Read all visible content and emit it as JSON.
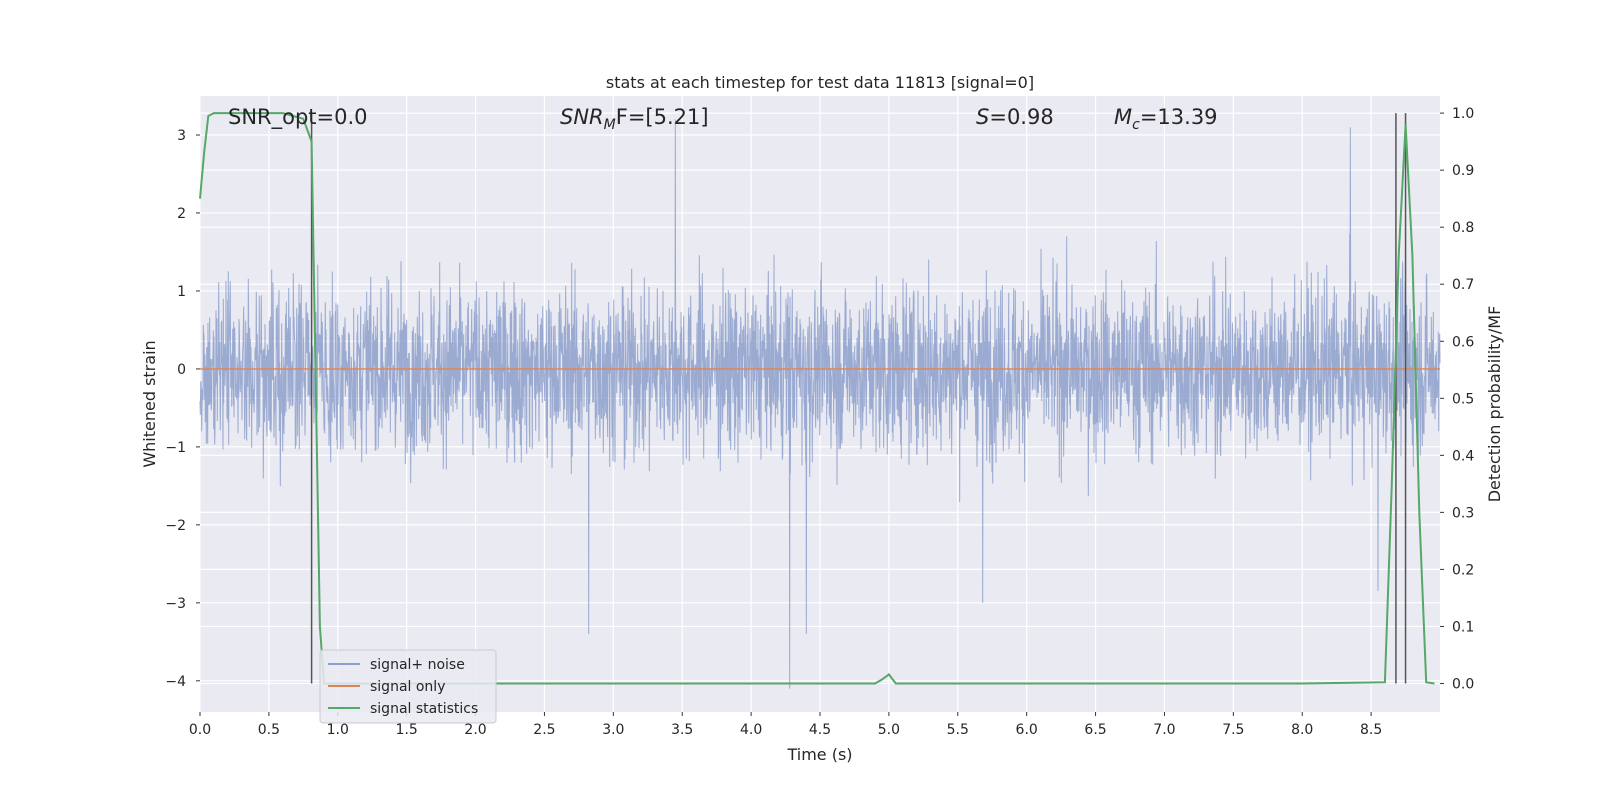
{
  "chart_data": {
    "type": "line",
    "title": "stats at each timestep for test data 11813 [signal=0]",
    "xlabel": "Time (s)",
    "ylabel": "Whitened strain",
    "y2label": "Detection probability/MF",
    "xlim": [
      0.0,
      9.0
    ],
    "ylim": [
      -4.4,
      3.5
    ],
    "y2lim": [
      -0.05,
      1.03
    ],
    "x_ticks": [
      "0.0",
      "0.5",
      "1.0",
      "1.5",
      "2.0",
      "2.5",
      "3.0",
      "3.5",
      "4.0",
      "4.5",
      "5.0",
      "5.5",
      "6.0",
      "6.5",
      "7.0",
      "7.5",
      "8.0",
      "8.5"
    ],
    "x_tick_values": [
      0.0,
      0.5,
      1.0,
      1.5,
      2.0,
      2.5,
      3.0,
      3.5,
      4.0,
      4.5,
      5.0,
      5.5,
      6.0,
      6.5,
      7.0,
      7.5,
      8.0,
      8.5
    ],
    "y_ticks": [
      "3",
      "2",
      "1",
      "0",
      "−1",
      "−2",
      "−3",
      "−4"
    ],
    "y_tick_values": [
      3,
      2,
      1,
      0,
      -1,
      -2,
      -3,
      -4
    ],
    "y2_ticks": [
      "1.0",
      "0.9",
      "0.8",
      "0.7",
      "0.6",
      "0.5",
      "0.4",
      "0.3",
      "0.2",
      "0.1",
      "0.0"
    ],
    "y2_tick_values": [
      1.0,
      0.9,
      0.8,
      0.7,
      0.6,
      0.5,
      0.4,
      0.3,
      0.2,
      0.1,
      0.0
    ],
    "grid": true,
    "legend_placement": "lower-left",
    "annotations": {
      "snr_opt": "SNR_opt=0.0",
      "snr_mf_sym": "SNR",
      "snr_mf_sub": "M",
      "snr_mf_rest": "F=[5.21]",
      "s_sym": "S",
      "s_rest": "=0.98",
      "mc_sym": "M",
      "mc_sub": "c",
      "mc_rest": "=13.39"
    },
    "series": [
      {
        "name": "signal+ noise",
        "color": "#8c9fcb",
        "kind": "noise",
        "typical_range": [
          -1.6,
          1.6
        ],
        "notable_points": [
          [
            2.82,
            -3.4
          ],
          [
            3.45,
            3.2
          ],
          [
            4.28,
            -4.1
          ],
          [
            4.4,
            -3.4
          ],
          [
            5.68,
            -3.0
          ],
          [
            8.35,
            3.1
          ],
          [
            8.55,
            -2.85
          ]
        ]
      },
      {
        "name": "signal only",
        "color": "#dd8452",
        "kind": "constant",
        "value": 0
      },
      {
        "name": "signal statistics",
        "color": "#55a868",
        "axis": "right",
        "x": [
          0.0,
          0.03,
          0.06,
          0.1,
          0.3,
          0.6,
          0.75,
          0.81,
          0.87,
          0.9,
          1.0,
          2.0,
          3.0,
          4.0,
          4.9,
          4.95,
          5.0,
          5.05,
          6.0,
          7.0,
          8.0,
          8.6,
          8.65,
          8.7,
          8.75,
          8.8,
          8.85,
          8.9,
          8.96
        ],
        "values": [
          0.85,
          0.93,
          0.995,
          1.0,
          1.0,
          1.0,
          0.99,
          0.95,
          0.1,
          0.0,
          0.0,
          0.0,
          0.0,
          0.0,
          0.0,
          0.007,
          0.016,
          0.0,
          0.0,
          0.0,
          0.0,
          0.002,
          0.35,
          0.75,
          0.98,
          0.75,
          0.3,
          0.002,
          0.0
        ]
      }
    ],
    "vertical_lines": [
      0.81,
      8.68,
      8.75
    ]
  }
}
